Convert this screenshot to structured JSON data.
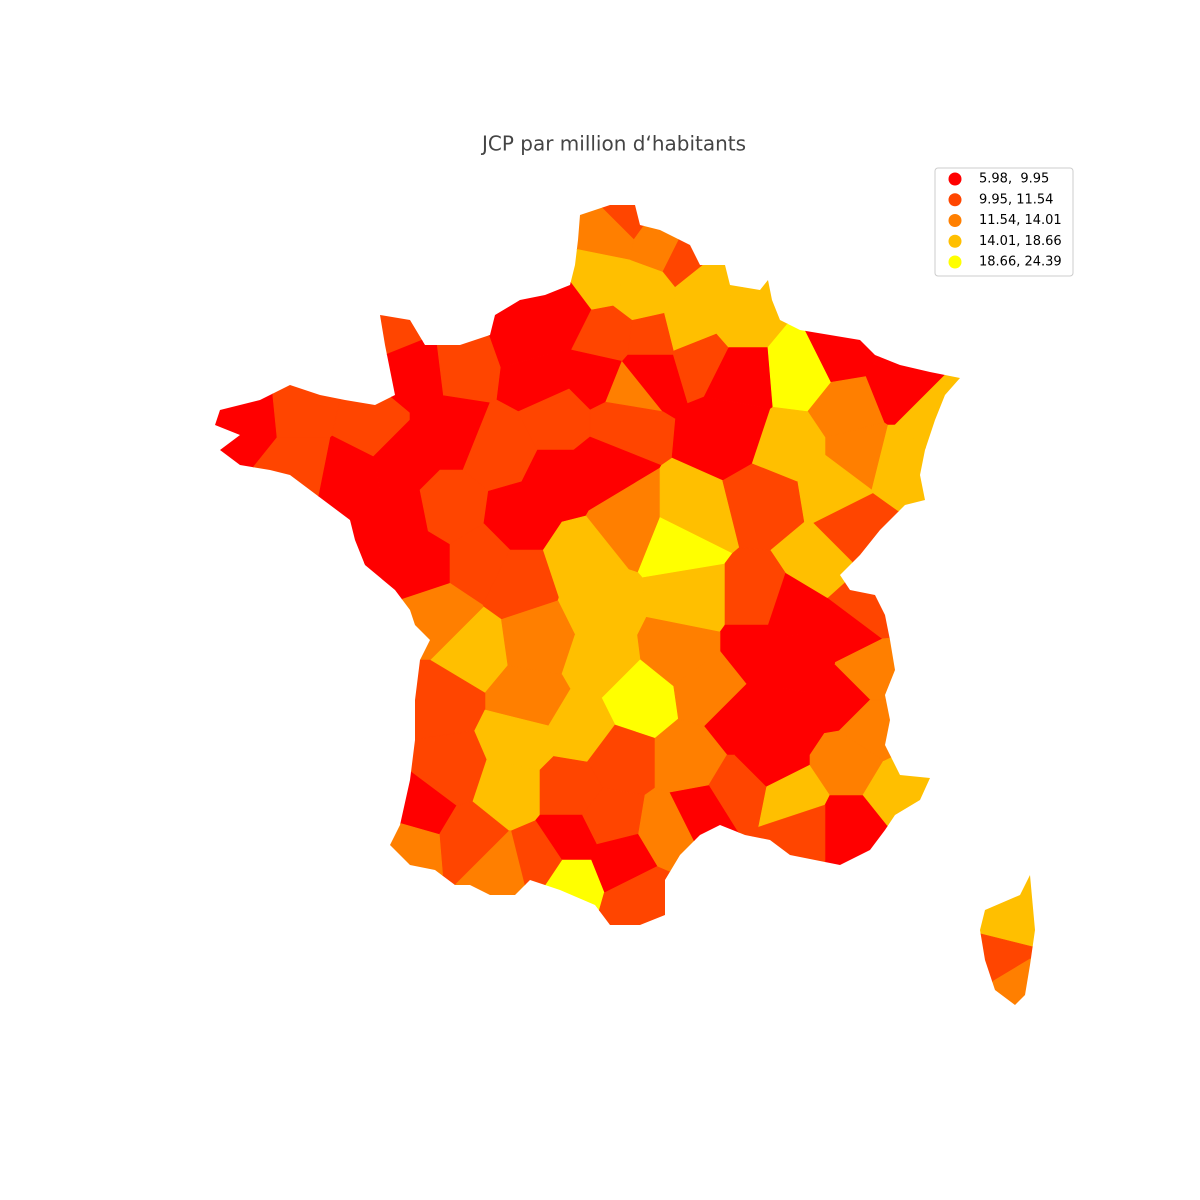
{
  "title": "JCP par million d‘habitants",
  "legend": [
    {
      "label": "5.98,  9.95",
      "color": "#ff0000"
    },
    {
      "label": "9.95, 11.54",
      "color": "#ff4500"
    },
    {
      "label": "11.54, 14.01",
      "color": "#ff7f00"
    },
    {
      "label": "14.01, 18.66",
      "color": "#ffbf00"
    },
    {
      "label": "18.66, 24.39",
      "color": "#ffff00"
    }
  ]
}
